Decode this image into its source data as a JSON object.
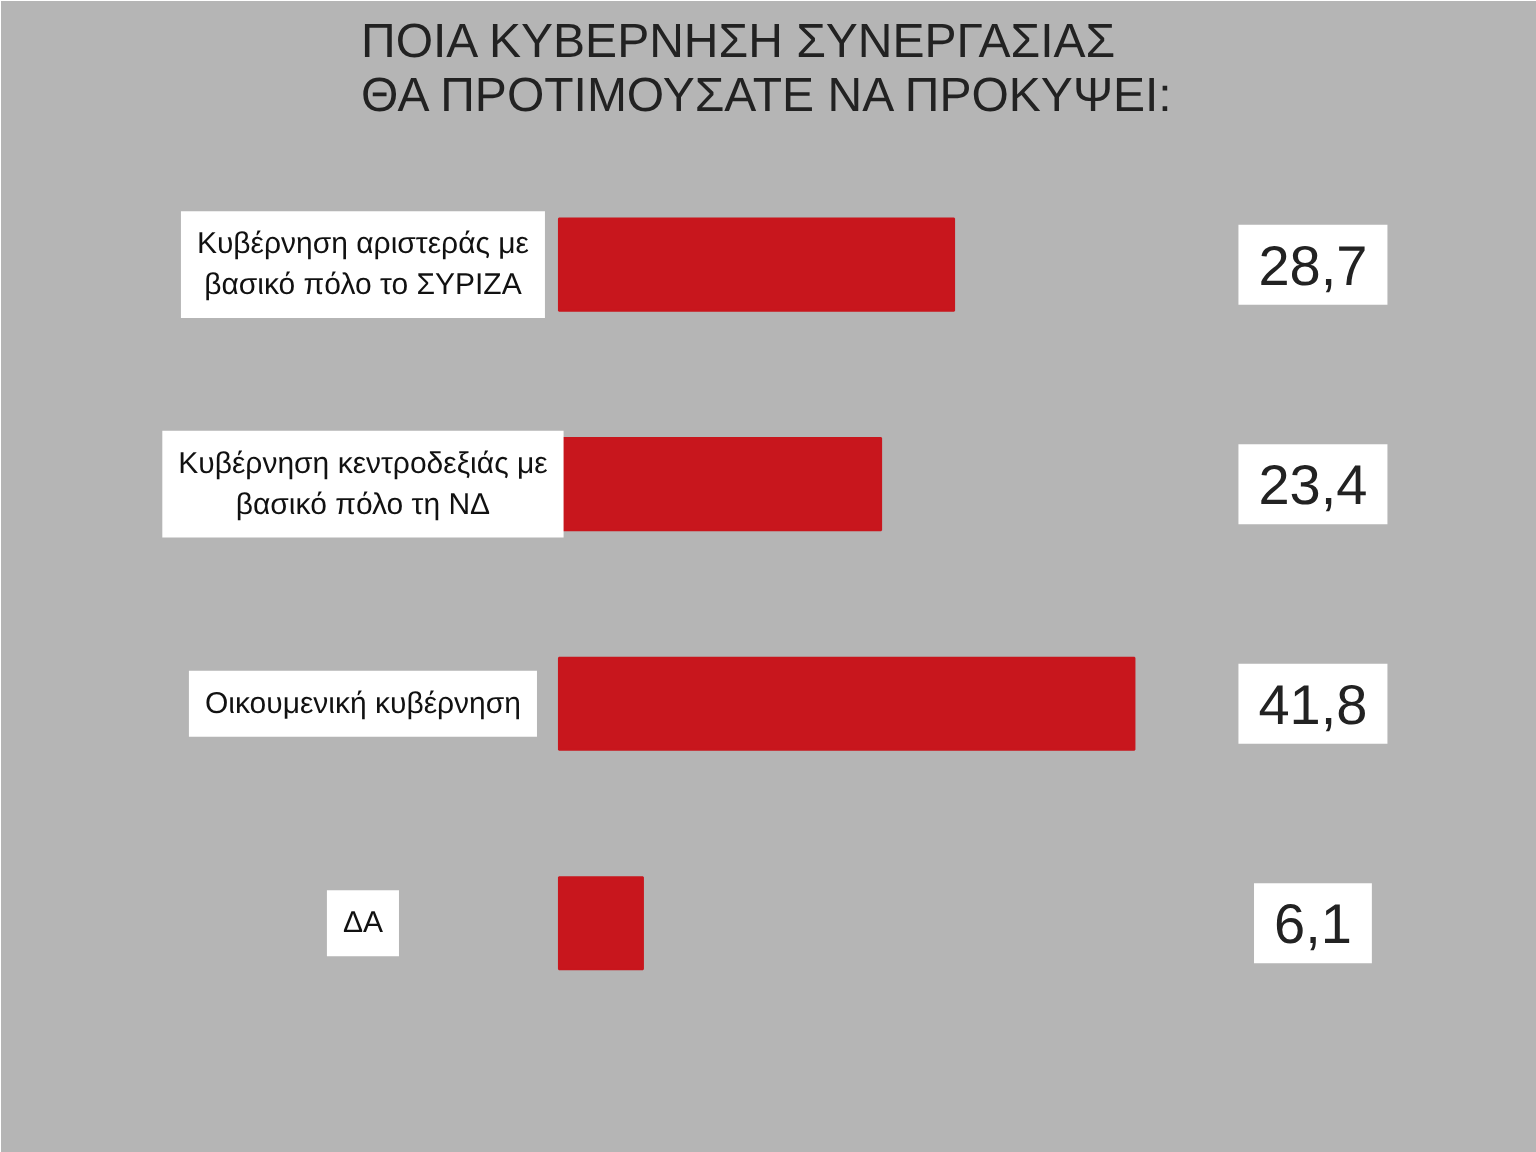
{
  "chart_data": {
    "type": "bar",
    "orientation": "horizontal",
    "title": "ΠΟΙΑ ΚΥΒΕΡΝΗΣΗ ΣΥΝΕΡΓΑΣΙΑΣ\nΘΑ ΠΡΟΤΙΜΟΥΣΑΤΕ ΝΑ ΠΡΟΚΥΨΕΙ:",
    "categories": [
      "Κυβέρνηση αριστεράς με βασικό πόλο το ΣΥΡΙΖΑ",
      "Κυβέρνηση κεντροδεξιάς με βασικό πόλο τη ΝΔ",
      "Οικουμενική κυβέρνηση",
      "ΔΑ"
    ],
    "values": [
      28.7,
      23.4,
      41.8,
      6.1
    ],
    "value_labels": [
      "28,7",
      "23,4",
      "41,8",
      "6,1"
    ],
    "color": "#c8161d",
    "grid": false
  }
}
